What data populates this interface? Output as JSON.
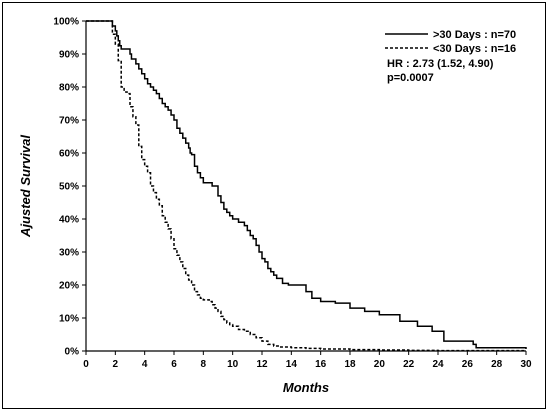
{
  "chart_data": {
    "type": "line",
    "title": "",
    "xlabel": "Months",
    "ylabel": "Ajusted Survival",
    "xlim": [
      0,
      30
    ],
    "ylim": [
      0,
      100
    ],
    "x_ticks": [
      0,
      2,
      4,
      6,
      8,
      10,
      12,
      14,
      16,
      18,
      20,
      22,
      24,
      26,
      28,
      30
    ],
    "y_ticks": [
      0,
      10,
      20,
      30,
      40,
      50,
      60,
      70,
      80,
      90,
      100
    ],
    "y_tick_labels": [
      "0%",
      "10%",
      "20%",
      "30%",
      "40%",
      "50%",
      "60%",
      "70%",
      "80%",
      "90%",
      "100%"
    ],
    "grid": false,
    "legend_position": "top-right",
    "series": [
      {
        "name": ">30 Days : n=70",
        "style": "solid",
        "color": "#000000",
        "x": [
          0,
          1.5,
          1.8,
          2.0,
          2.1,
          2.2,
          2.3,
          2.4,
          2.5,
          2.6,
          3.0,
          3.1,
          3.2,
          3.4,
          3.6,
          3.8,
          4.0,
          4.2,
          4.4,
          4.6,
          4.8,
          5.0,
          5.2,
          5.4,
          5.6,
          5.8,
          6.0,
          6.2,
          6.4,
          6.6,
          6.8,
          7.0,
          7.1,
          7.2,
          7.4,
          7.6,
          7.8,
          8.0,
          8.2,
          8.4,
          8.6,
          9.0,
          9.2,
          9.4,
          9.6,
          9.8,
          10.0,
          10.4,
          10.8,
          11.0,
          11.2,
          11.4,
          11.6,
          11.8,
          12.0,
          12.2,
          12.4,
          12.6,
          12.8,
          13.0,
          13.4,
          13.8,
          14.6,
          15.0,
          15.4,
          16.0,
          17.0,
          17.6,
          18.0,
          19.0,
          20.0,
          21.4,
          22.0,
          22.6,
          23.6,
          24.0,
          24.4,
          26.4,
          26.6,
          30.0
        ],
        "values": [
          100,
          100,
          98.5,
          97,
          95.5,
          94,
          92.5,
          91.5,
          91.5,
          91.5,
          90,
          88.5,
          88.5,
          87,
          85.5,
          84,
          82.5,
          81,
          80,
          79,
          78,
          76.5,
          75,
          74,
          73,
          71.5,
          70,
          67.5,
          66,
          64.5,
          63,
          61.5,
          60,
          59.5,
          56,
          54,
          52.5,
          51,
          51,
          51,
          50,
          47,
          45,
          43,
          42,
          41,
          40,
          39,
          38,
          36.5,
          35,
          34,
          32,
          30,
          28,
          27,
          25,
          24,
          23,
          22,
          20.5,
          20,
          20,
          18,
          16,
          15,
          14.5,
          14.5,
          13,
          12,
          11,
          9,
          9,
          7.5,
          6,
          6,
          3,
          2,
          1,
          0.6
        ]
      },
      {
        "name": "<30 Days : n=16",
        "style": "dashed",
        "color": "#000000",
        "x": [
          0,
          1.4,
          1.8,
          2.0,
          2.2,
          2.4,
          2.6,
          2.8,
          3.0,
          3.2,
          3.4,
          3.6,
          3.8,
          4.0,
          4.2,
          4.4,
          4.6,
          4.8,
          5.0,
          5.2,
          5.4,
          5.6,
          5.8,
          6.0,
          6.2,
          6.4,
          6.6,
          6.8,
          7.0,
          7.2,
          7.4,
          7.6,
          7.8,
          8.0,
          8.2,
          8.4,
          8.6,
          8.8,
          9.0,
          9.2,
          9.4,
          9.6,
          9.8,
          10.0,
          10.4,
          10.8,
          11.2,
          11.6,
          12.0,
          12.4,
          12.8,
          13.2,
          14.0,
          15.0,
          16.0,
          18.0,
          20.0,
          22.0,
          24.0,
          30.0
        ],
        "values": [
          100,
          100,
          96,
          93,
          88,
          80,
          78.5,
          78,
          74,
          71,
          68.5,
          62,
          58,
          56,
          54,
          50,
          48,
          46,
          44,
          41,
          39,
          37,
          34,
          31,
          29,
          27,
          25,
          23,
          21.5,
          20,
          18,
          17,
          16,
          15.5,
          15.5,
          15,
          14,
          13,
          12,
          10.5,
          9.5,
          8.5,
          8,
          7.5,
          6.5,
          6,
          5,
          4,
          3,
          2,
          1.5,
          1.2,
          1.0,
          0.8,
          0.6,
          0.4,
          0.3,
          0.2,
          0.1,
          0
        ]
      }
    ],
    "annotations": [
      "HR : 2.73 (1.52, 4.90)",
      "p=0.0007"
    ]
  }
}
